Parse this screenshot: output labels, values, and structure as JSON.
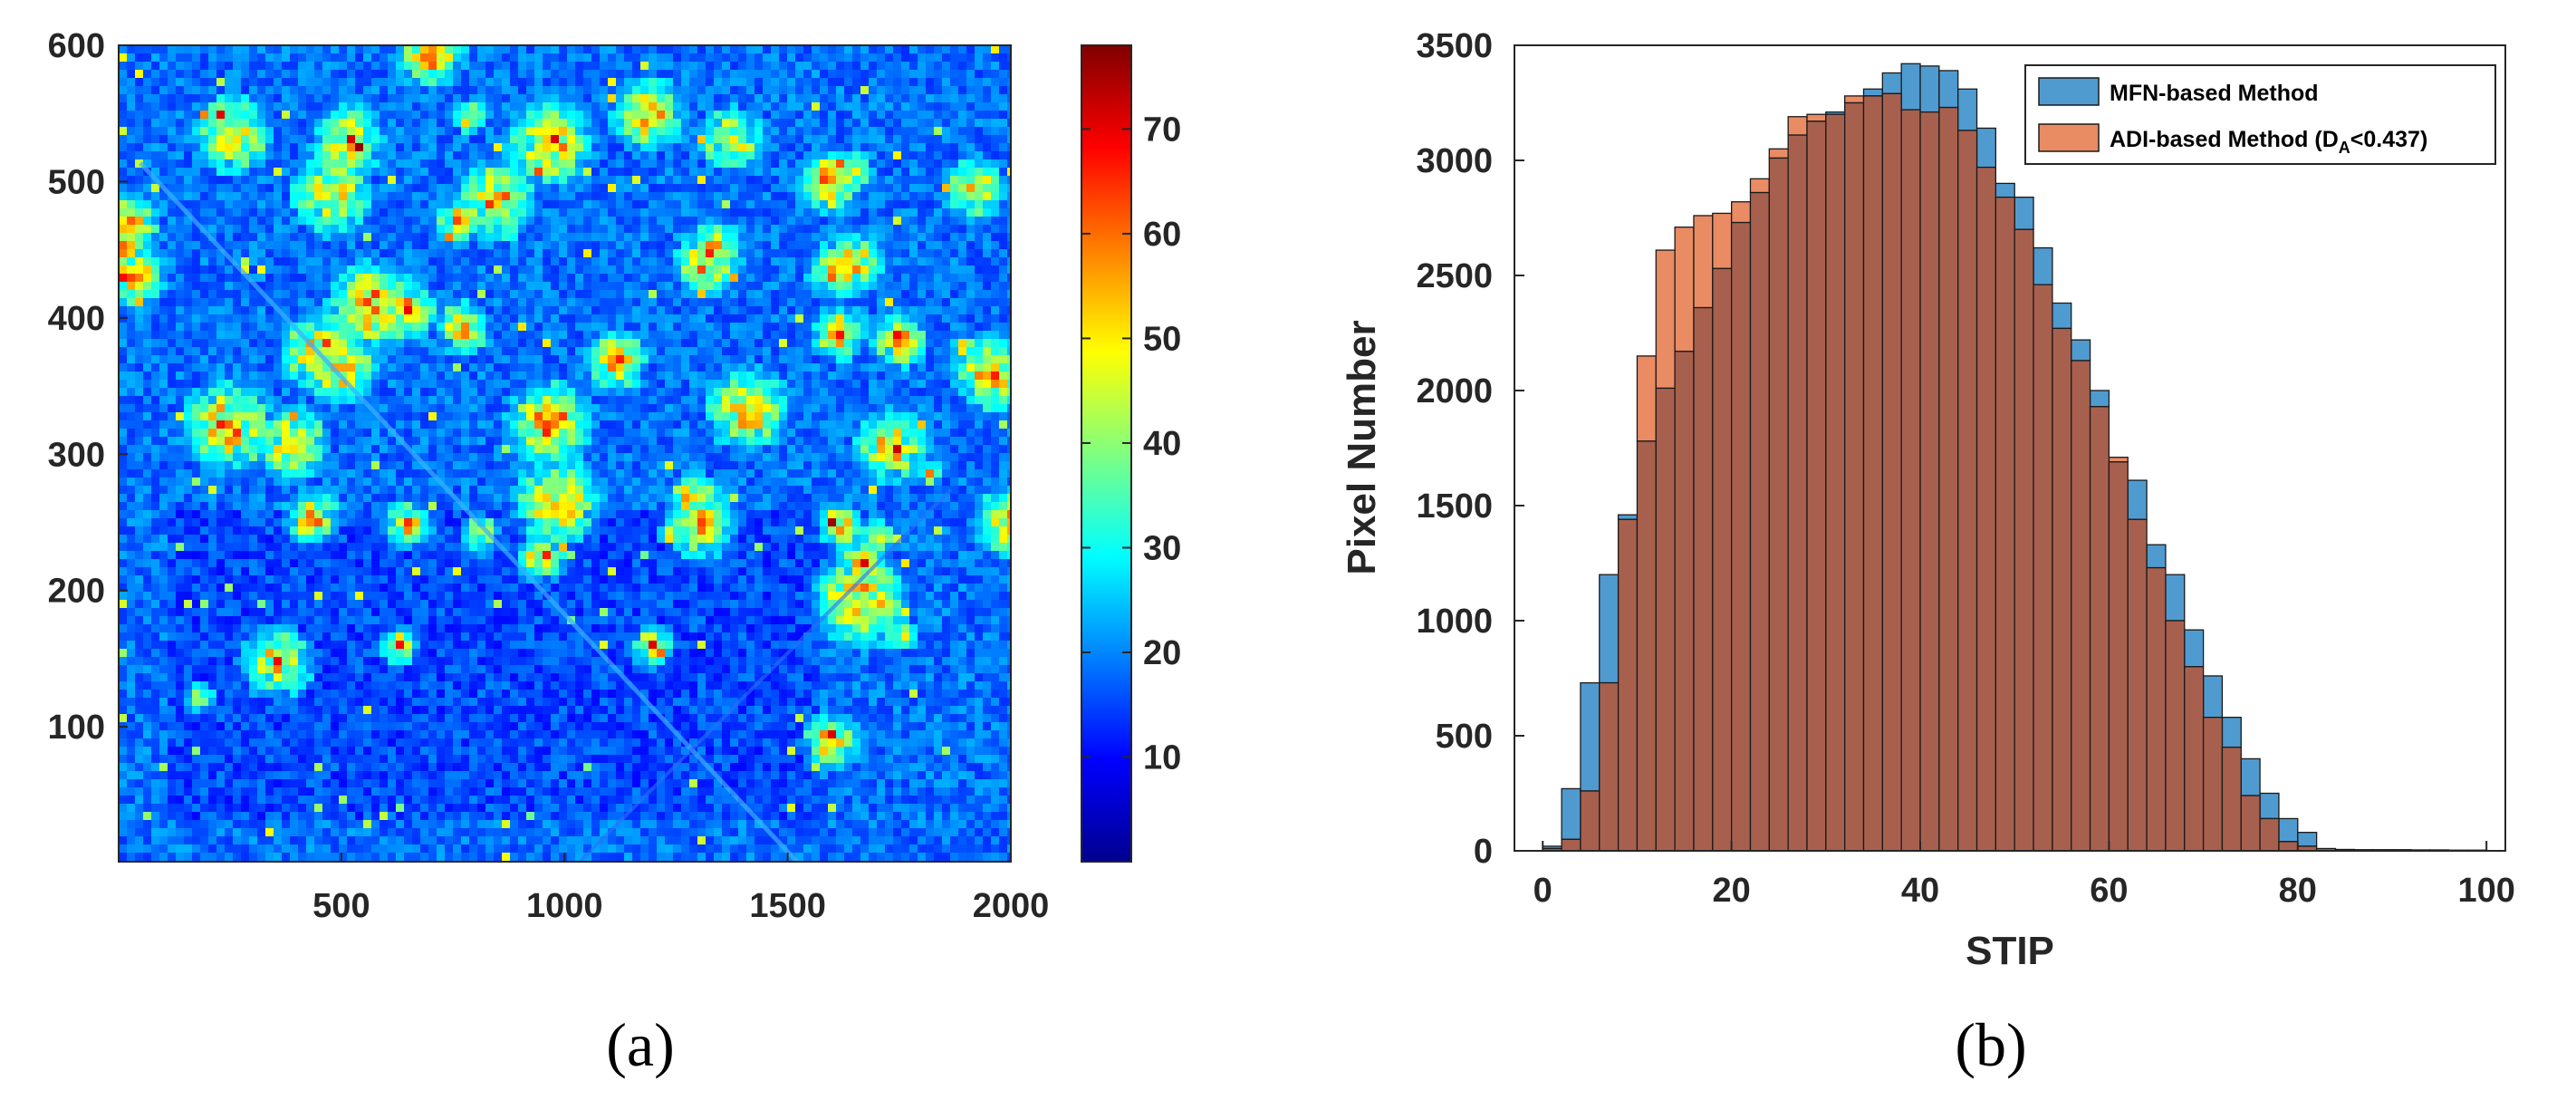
{
  "panel_labels": {
    "a": "(a)",
    "b": "(b)"
  },
  "colors": {
    "mfn_fill": "#4f9bd0",
    "adi_fill": "#e98b63",
    "overlap_fill": "#a8604e",
    "edge": "#1a1a1a"
  },
  "chart_data": [
    {
      "type": "heatmap",
      "title": "",
      "xlabel": "",
      "ylabel": "",
      "xlim": [
        1,
        2000
      ],
      "ylim": [
        1,
        600
      ],
      "xticks": [
        "500",
        "1000",
        "1500",
        "2000"
      ],
      "yticks": [
        "100",
        "200",
        "300",
        "400",
        "500",
        "600"
      ],
      "colorbar": {
        "range": [
          0,
          78
        ],
        "ticks": [
          "10",
          "20",
          "30",
          "40",
          "50",
          "60",
          "70"
        ],
        "colormap": "jet"
      }
    },
    {
      "type": "bar",
      "subtype": "overlapping-histogram",
      "title": "",
      "xlabel": "STIP",
      "ylabel": "Pixel Number",
      "xlim": [
        -3,
        102
      ],
      "ylim": [
        0,
        3500
      ],
      "bin_width": 2,
      "xticks": [
        "0",
        "20",
        "40",
        "60",
        "80",
        "100"
      ],
      "yticks": [
        "0",
        "500",
        "1000",
        "1500",
        "2000",
        "2500",
        "3000",
        "3500"
      ],
      "legend_position": "top-right",
      "bin_starts": [
        0,
        2,
        4,
        6,
        8,
        10,
        12,
        14,
        16,
        18,
        20,
        22,
        24,
        26,
        28,
        30,
        32,
        34,
        36,
        38,
        40,
        42,
        44,
        46,
        48,
        50,
        52,
        54,
        56,
        58,
        60,
        62,
        64,
        66,
        68,
        70,
        72,
        74,
        76,
        78,
        80,
        82,
        84,
        86,
        88,
        90,
        92,
        94,
        96,
        98
      ],
      "series": [
        {
          "name": "MFN-based Method",
          "values": [
            20,
            270,
            730,
            1200,
            1460,
            1780,
            2010,
            2170,
            2360,
            2530,
            2730,
            2860,
            3010,
            3110,
            3170,
            3210,
            3250,
            3310,
            3380,
            3420,
            3410,
            3390,
            3310,
            3140,
            2900,
            2840,
            2620,
            2380,
            2220,
            2000,
            1690,
            1610,
            1330,
            1200,
            960,
            760,
            580,
            400,
            250,
            140,
            80,
            10,
            6,
            5,
            5,
            5,
            4,
            4,
            3,
            3
          ]
        },
        {
          "name": "ADI-based Method (D",
          "name_sub": "A",
          "name_tail": "<0.437)",
          "values": [
            10,
            50,
            260,
            730,
            1440,
            2150,
            2610,
            2710,
            2760,
            2770,
            2820,
            2920,
            3050,
            3190,
            3200,
            3200,
            3280,
            3280,
            3290,
            3220,
            3210,
            3230,
            3130,
            2970,
            2840,
            2700,
            2460,
            2270,
            2130,
            1930,
            1710,
            1440,
            1230,
            1000,
            800,
            580,
            450,
            240,
            140,
            40,
            20,
            10,
            5,
            3,
            2,
            2,
            2,
            2,
            1,
            1
          ]
        }
      ]
    }
  ]
}
